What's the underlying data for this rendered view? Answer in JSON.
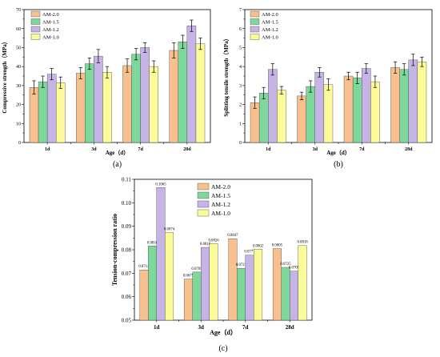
{
  "colors": {
    "AM-2.0": "#f8c08e",
    "AM-1.5": "#7fd89b",
    "AM-1.2": "#c6b4e6",
    "AM-1.0": "#fbfb9a"
  },
  "chart_data": [
    {
      "id": "a",
      "panel_label": "(a)",
      "type": "bar",
      "ylabel": "Compressive strength（MPa）",
      "xlabel": "Age（d）",
      "ylim": [
        0,
        70
      ],
      "yticks": [
        0,
        10,
        20,
        30,
        40,
        50,
        60,
        70
      ],
      "tick_decimals": 0,
      "categories": [
        "1d",
        "3d",
        "7d",
        "28d"
      ],
      "legend_position": "top-left",
      "series": [
        {
          "name": "AM-2.0",
          "values": [
            29,
            36.5,
            40.5,
            48.5
          ],
          "errors": [
            3.5,
            3,
            3.5,
            4
          ]
        },
        {
          "name": "AM-1.5",
          "values": [
            32,
            41.5,
            46.5,
            53
          ],
          "errors": [
            3,
            3,
            3,
            3.5
          ]
        },
        {
          "name": "AM-1.2",
          "values": [
            36,
            45.5,
            50,
            61.5
          ],
          "errors": [
            3,
            3.5,
            2.5,
            3
          ]
        },
        {
          "name": "AM-1.0",
          "values": [
            31.5,
            37,
            40,
            52
          ],
          "errors": [
            3,
            3,
            3,
            3
          ]
        }
      ]
    },
    {
      "id": "b",
      "panel_label": "(b)",
      "type": "bar",
      "ylabel": "Splitting tensile strength（MPa）",
      "xlabel": "Age（d）",
      "ylim": [
        0,
        7
      ],
      "yticks": [
        0,
        1,
        2,
        3,
        4,
        5,
        6,
        7
      ],
      "tick_decimals": 0,
      "categories": [
        "1d",
        "3d",
        "7d",
        "28d"
      ],
      "legend_position": "top-left",
      "series": [
        {
          "name": "AM-2.0",
          "values": [
            2.1,
            2.45,
            3.5,
            3.95
          ],
          "errors": [
            0.3,
            0.2,
            0.2,
            0.3
          ]
        },
        {
          "name": "AM-1.5",
          "values": [
            2.6,
            2.95,
            3.4,
            3.85
          ],
          "errors": [
            0.3,
            0.3,
            0.3,
            0.3
          ]
        },
        {
          "name": "AM-1.2",
          "values": [
            3.85,
            3.7,
            3.9,
            4.35
          ],
          "errors": [
            0.3,
            0.25,
            0.25,
            0.3
          ]
        },
        {
          "name": "AM-1.0",
          "values": [
            2.75,
            3.05,
            3.2,
            4.25
          ],
          "errors": [
            0.2,
            0.3,
            0.3,
            0.25
          ]
        }
      ]
    },
    {
      "id": "c",
      "panel_label": "(c)",
      "type": "bar",
      "ylabel": "Tension-compression ratio",
      "xlabel": "Age（d）",
      "ylim": [
        0.05,
        0.11
      ],
      "yticks": [
        0.05,
        0.06,
        0.07,
        0.08,
        0.09,
        0.1,
        0.11
      ],
      "tick_decimals": 2,
      "categories": [
        "1d",
        "3d",
        "7d",
        "28d"
      ],
      "legend_position": "top-center",
      "series": [
        {
          "name": "AM-2.0",
          "values": [
            0.0714,
            0.0675,
            0.0847,
            0.0805
          ],
          "labels": [
            "0.0714",
            "0.0675",
            "0.0847",
            "0.0805"
          ]
        },
        {
          "name": "AM-1.5",
          "values": [
            0.0816,
            0.0705,
            0.0721,
            0.0725
          ],
          "labels": [
            "0.0816",
            "0.0705",
            "0.0721",
            "0.0725"
          ]
        },
        {
          "name": "AM-1.2",
          "values": [
            0.1065,
            0.081,
            0.0777,
            0.0709
          ],
          "labels": [
            "0.1065",
            "0.0810",
            "0.0777",
            "0.0709"
          ]
        },
        {
          "name": "AM-1.0",
          "values": [
            0.0874,
            0.0826,
            0.0802,
            0.0818
          ],
          "labels": [
            "0.0874",
            "0.0826",
            "0.0802",
            "0.0818"
          ]
        }
      ]
    }
  ]
}
